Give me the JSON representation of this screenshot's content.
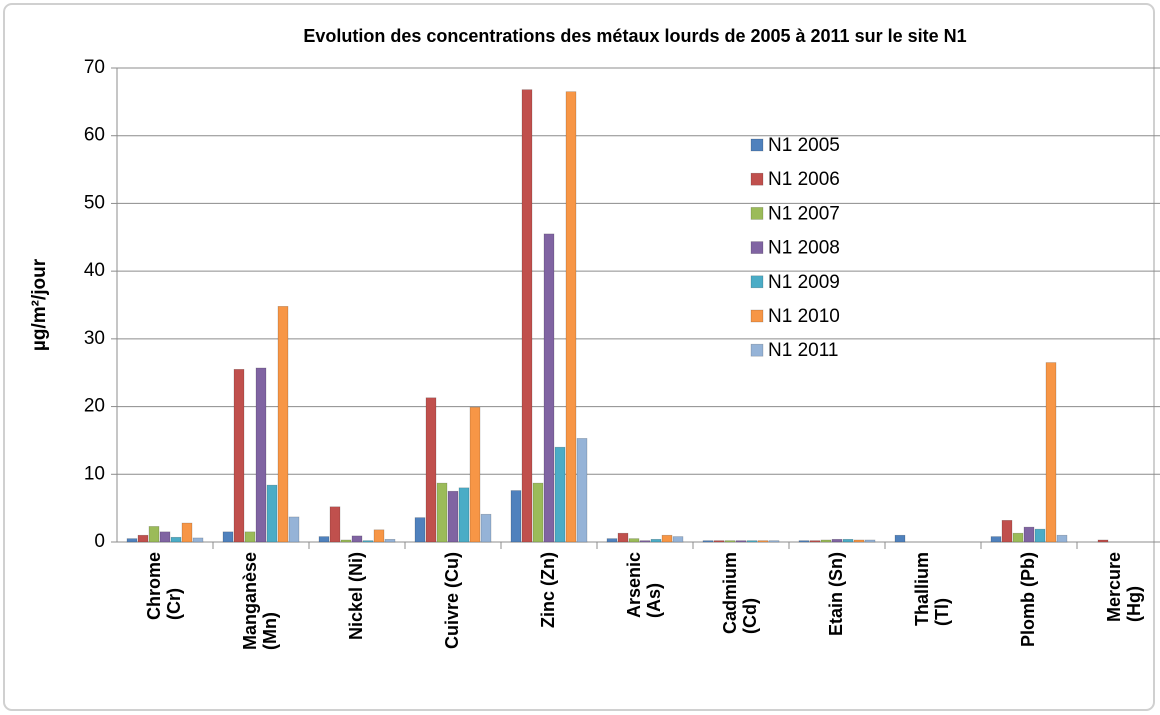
{
  "chart_data": {
    "type": "bar",
    "title": "Evolution des concentrations des métaux lourds de 2005 à 2011 sur le site N1",
    "y_label": "µg/m²/jour",
    "categories": [
      "Chrome\n(Cr)",
      "Manganèse\n(Mn)",
      "Nickel (Ni)",
      "Cuivre (Cu)",
      "Zinc (Zn)",
      "Arsenic\n(As)",
      "Cadmium\n(Cd)",
      "Etain (Sn)",
      "Thallium\n(Tl)",
      "Plomb (Pb)",
      "Mercure\n(Hg)"
    ],
    "series": [
      {
        "name": "N1 2005",
        "color": "#4f81bd",
        "values": [
          0.5,
          1.5,
          0.8,
          3.6,
          7.6,
          0.5,
          0.2,
          0.2,
          1.0,
          0.8,
          null
        ]
      },
      {
        "name": "N1 2006",
        "color": "#c0504d",
        "values": [
          1.0,
          25.5,
          5.2,
          21.3,
          66.8,
          1.3,
          0.2,
          0.2,
          null,
          3.2,
          0.3
        ]
      },
      {
        "name": "N1 2007",
        "color": "#9bbb59",
        "values": [
          2.3,
          1.5,
          0.3,
          8.7,
          8.7,
          0.5,
          0.2,
          0.3,
          null,
          1.3,
          null
        ]
      },
      {
        "name": "N1 2008",
        "color": "#8064a2",
        "values": [
          1.5,
          25.7,
          0.9,
          7.5,
          45.5,
          0.2,
          0.2,
          0.4,
          null,
          2.2,
          null
        ]
      },
      {
        "name": "N1 2009",
        "color": "#4bacc6",
        "values": [
          0.7,
          8.4,
          0.2,
          8.0,
          14.0,
          0.4,
          0.2,
          0.4,
          null,
          1.9,
          null
        ]
      },
      {
        "name": "N1 2010",
        "color": "#f79646",
        "values": [
          2.8,
          34.8,
          1.8,
          19.9,
          66.5,
          1.0,
          0.2,
          0.3,
          null,
          26.5,
          null
        ]
      },
      {
        "name": "N1 2011",
        "color": "#95b3d7",
        "values": [
          0.6,
          3.7,
          0.4,
          4.1,
          15.3,
          0.8,
          0.2,
          0.3,
          null,
          1.0,
          null
        ]
      }
    ],
    "ylim": [
      0,
      70
    ],
    "yticks": [
      0,
      10,
      20,
      30,
      40,
      50,
      60,
      70
    ],
    "grid": true
  }
}
